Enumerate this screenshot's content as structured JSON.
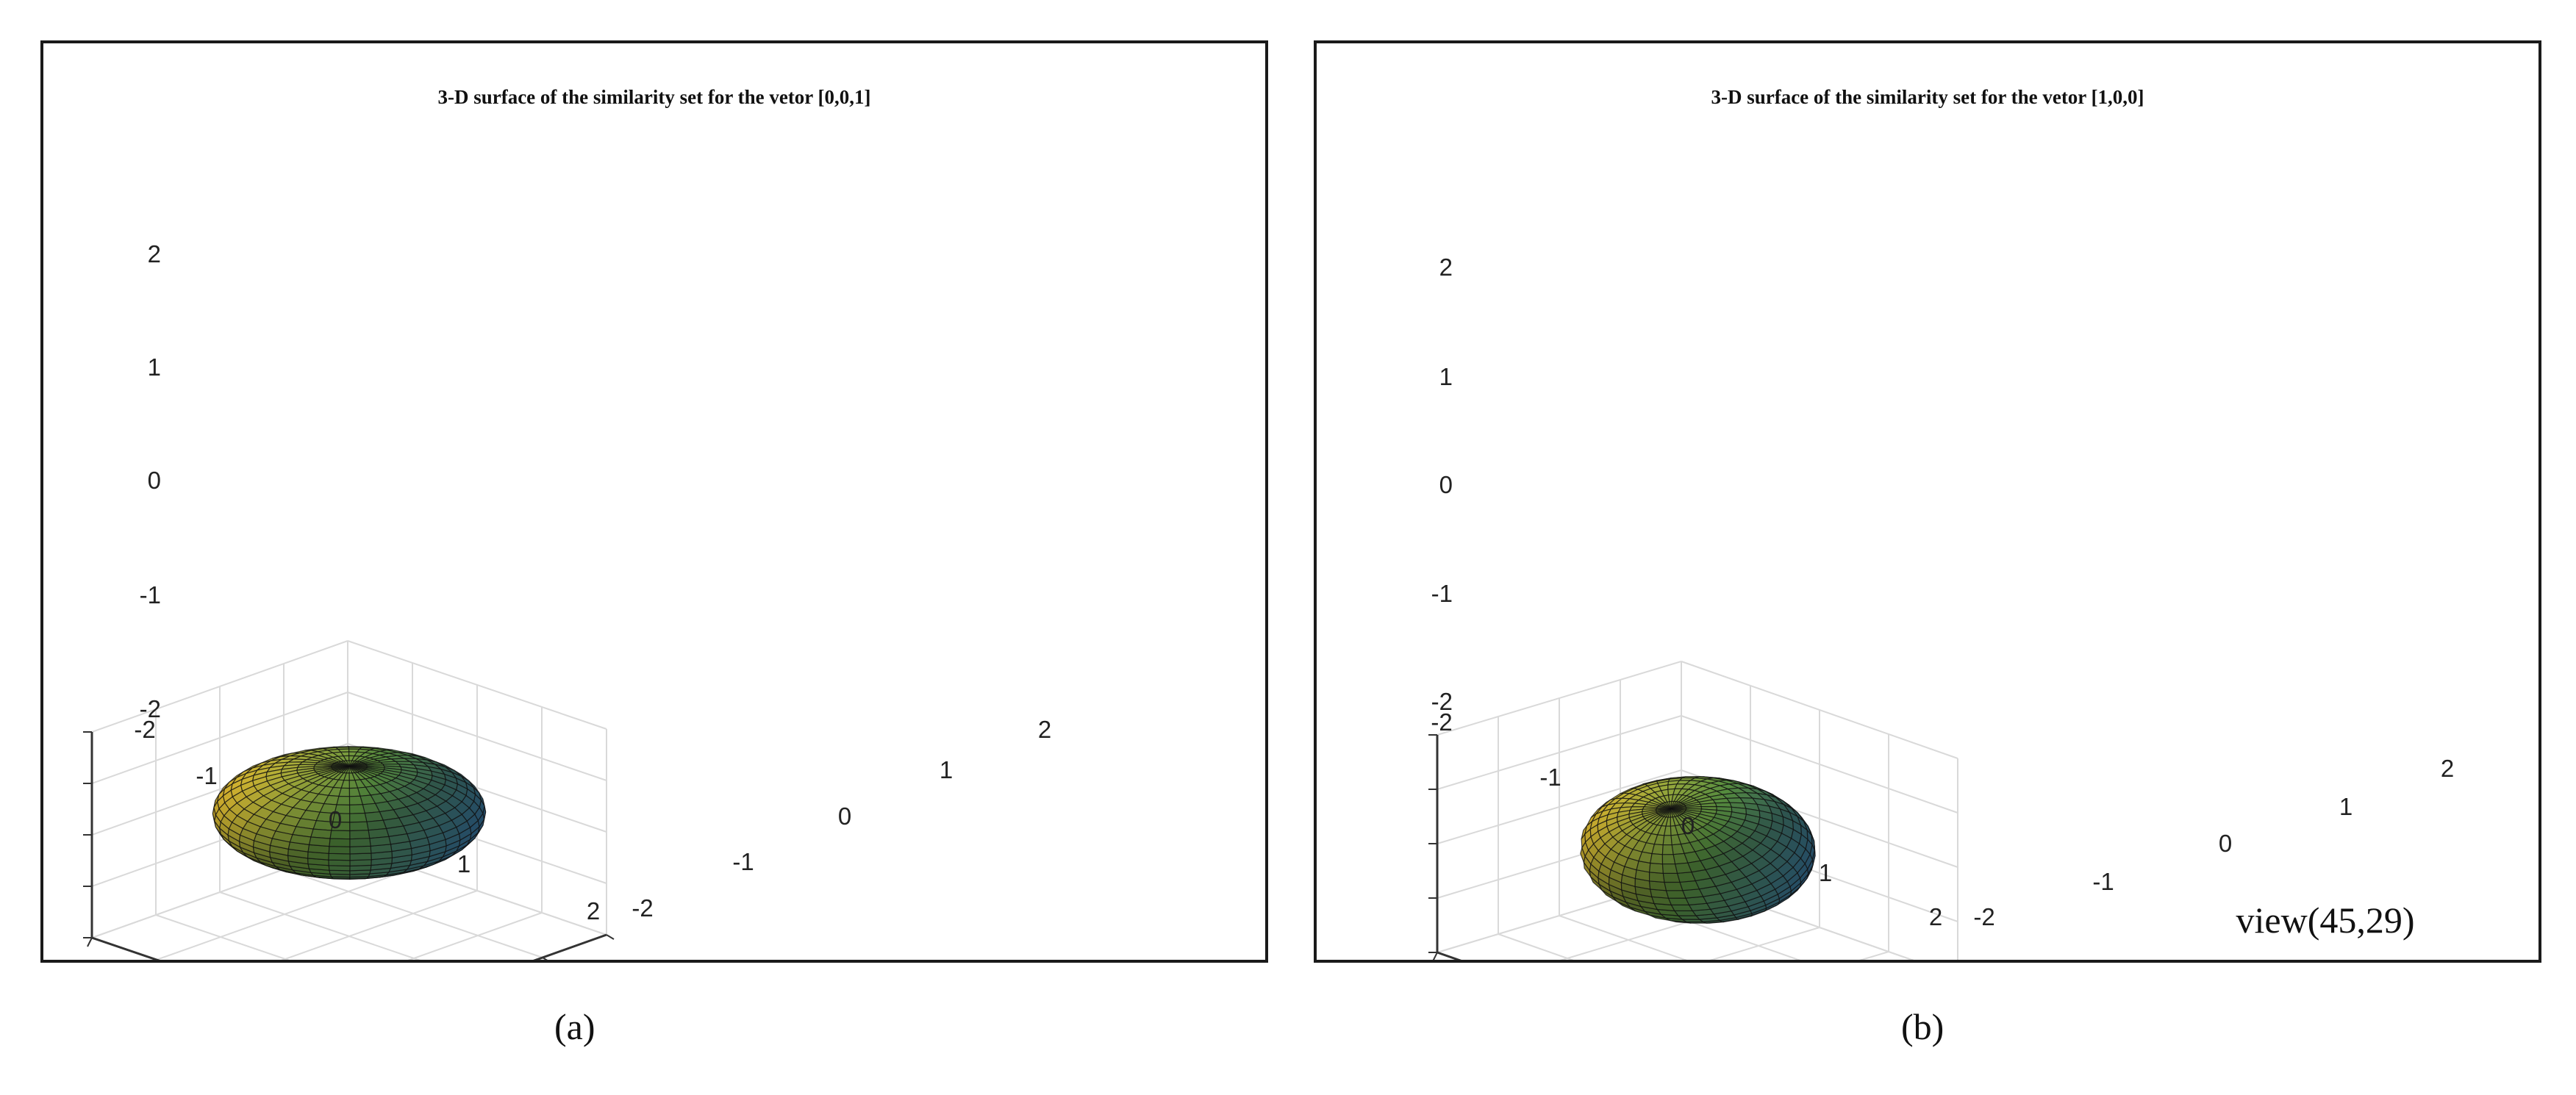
{
  "colors": {
    "surface_colormap": "parula",
    "surface_low": "#3e86c8",
    "surface_mid": "#6cb04f",
    "surface_high": "#e0b42c",
    "mesh_lines": "#101010",
    "grid": "#d9d9d9",
    "axis": "#333333",
    "panel_border": "#1a1a1a"
  },
  "chart_data": [
    {
      "type": "surface3d",
      "caption": "(a)",
      "title": "3-D surface of the similarity set for the vetor [0,0,1]",
      "xlim": [
        -2,
        2
      ],
      "ylim": [
        -2,
        2
      ],
      "zlim": [
        -2,
        2
      ],
      "x_ticks": [
        "-2",
        "-1",
        "0",
        "1",
        "2"
      ],
      "y_ticks": [
        "-2",
        "-1",
        "0",
        "1",
        "2"
      ],
      "z_ticks": [
        "2",
        "1",
        "0",
        "-1",
        "-2"
      ],
      "surface": {
        "shape": "oblate spheroid",
        "center": [
          0,
          0,
          0.4
        ],
        "radius_xy": 1.5,
        "radius_z": 0.9
      },
      "annotation": "",
      "grid": true
    },
    {
      "type": "surface3d",
      "caption": "(b)",
      "title": "3-D surface of the similarity set for the vetor [1,0,0]",
      "xlim": [
        -2,
        2
      ],
      "ylim": [
        -2,
        2
      ],
      "zlim": [
        -2,
        2
      ],
      "x_ticks": [
        "-2",
        "-1",
        "0",
        "1",
        "2"
      ],
      "y_ticks": [
        "-2",
        "-1",
        "0",
        "1",
        "2"
      ],
      "z_ticks": [
        "2",
        "1",
        "0",
        "-1",
        "-2"
      ],
      "surface": {
        "shape": "tilted spheroid",
        "center": [
          0,
          0,
          0.1
        ],
        "radius_xy": 1.3,
        "radius_z": 1.0
      },
      "annotation": "view(45,29)",
      "grid": true
    }
  ]
}
